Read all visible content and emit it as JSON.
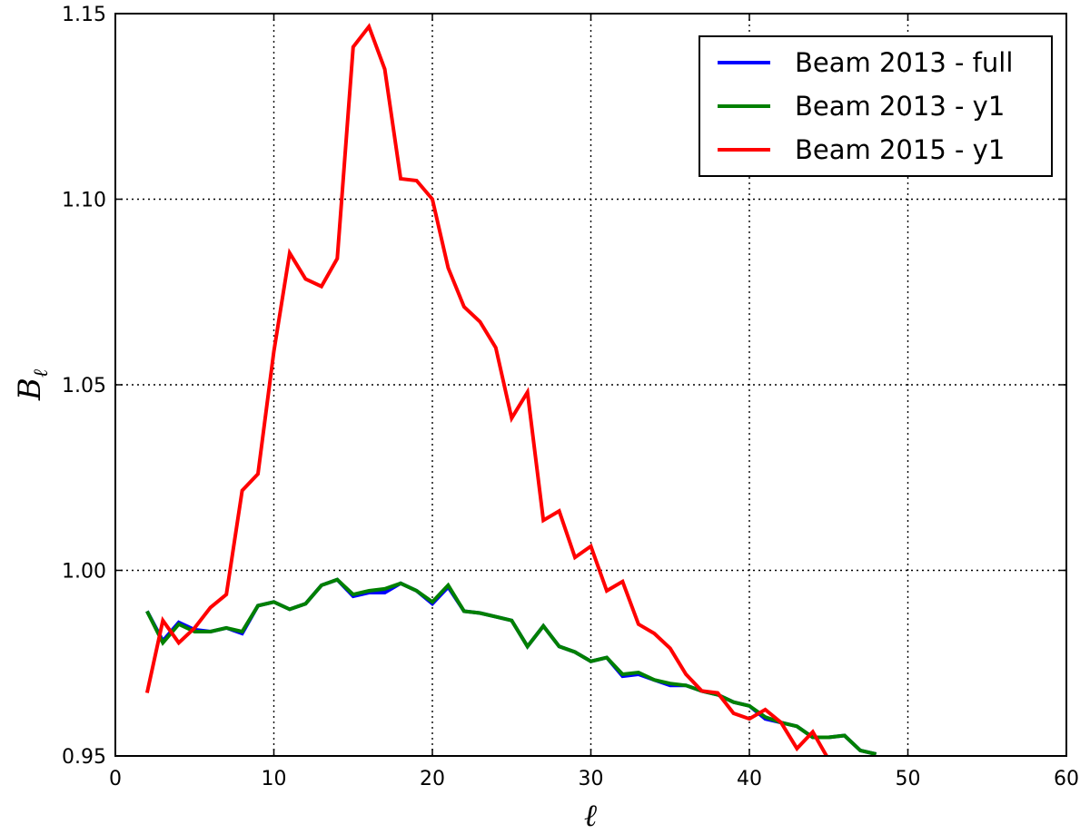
{
  "chart_data": {
    "type": "line",
    "title": "",
    "xlabel": "ℓ",
    "ylabel": "B",
    "ylabel_subscript": "ℓ",
    "xlim": [
      0,
      60
    ],
    "ylim": [
      0.95,
      1.15
    ],
    "xticks": [
      0,
      10,
      20,
      30,
      40,
      50,
      60
    ],
    "yticks": [
      0.95,
      1.0,
      1.05,
      1.1,
      1.15
    ],
    "xtick_labels": [
      "0",
      "10",
      "20",
      "30",
      "40",
      "50",
      "60"
    ],
    "ytick_labels": [
      "0.95",
      "1.00",
      "1.05",
      "1.10",
      "1.15"
    ],
    "grid": true,
    "legend_position": "top-right",
    "series": [
      {
        "name": "Beam 2013 - full",
        "color": "#0000ff",
        "x": [
          2,
          3,
          4,
          5,
          6,
          7,
          8,
          9,
          10,
          11,
          12,
          13,
          14,
          15,
          16,
          17,
          18,
          19,
          20,
          21,
          22,
          23,
          24,
          25,
          26,
          27,
          28,
          29,
          30,
          31,
          32,
          33,
          34,
          35,
          36,
          37,
          38,
          39,
          40,
          41,
          42,
          43,
          44,
          45,
          46,
          47,
          48
        ],
        "y": [
          0.989,
          0.981,
          0.986,
          0.984,
          0.9835,
          0.9845,
          0.983,
          0.9905,
          0.9915,
          0.9895,
          0.991,
          0.996,
          0.9975,
          0.993,
          0.994,
          0.994,
          0.9965,
          0.9945,
          0.991,
          0.9955,
          0.989,
          0.9885,
          0.9875,
          0.9865,
          0.9795,
          0.985,
          0.9795,
          0.978,
          0.9755,
          0.9765,
          0.9715,
          0.972,
          0.9705,
          0.969,
          0.969,
          0.9675,
          0.9665,
          0.9645,
          0.9635,
          0.96,
          0.959,
          0.958,
          0.955,
          0.955,
          0.9555,
          0.9515,
          0.9505
        ]
      },
      {
        "name": "Beam 2013 - y1",
        "color": "#008000",
        "x": [
          2,
          3,
          4,
          5,
          6,
          7,
          8,
          9,
          10,
          11,
          12,
          13,
          14,
          15,
          16,
          17,
          18,
          19,
          20,
          21,
          22,
          23,
          24,
          25,
          26,
          27,
          28,
          29,
          30,
          31,
          32,
          33,
          34,
          35,
          36,
          37,
          38,
          39,
          40,
          41,
          42,
          43,
          44,
          45,
          46,
          47,
          48
        ],
        "y": [
          0.989,
          0.9805,
          0.9855,
          0.9835,
          0.9835,
          0.9845,
          0.9835,
          0.9905,
          0.9915,
          0.9895,
          0.991,
          0.996,
          0.9975,
          0.9935,
          0.9945,
          0.995,
          0.9965,
          0.9945,
          0.9915,
          0.996,
          0.989,
          0.9885,
          0.9875,
          0.9865,
          0.9795,
          0.985,
          0.9795,
          0.978,
          0.9755,
          0.9765,
          0.972,
          0.9725,
          0.9705,
          0.9695,
          0.969,
          0.9675,
          0.9665,
          0.9645,
          0.9635,
          0.9605,
          0.959,
          0.958,
          0.955,
          0.955,
          0.9555,
          0.9515,
          0.9505
        ]
      },
      {
        "name": "Beam 2015 - y1",
        "color": "#ff0000",
        "x": [
          2,
          3,
          4,
          5,
          6,
          7,
          8,
          9,
          10,
          11,
          12,
          13,
          14,
          15,
          16,
          17,
          18,
          19,
          20,
          21,
          22,
          23,
          24,
          25,
          26,
          27,
          28,
          29,
          30,
          31,
          32,
          33,
          34,
          35,
          36,
          37,
          38,
          39,
          40,
          41,
          42,
          43,
          44,
          45
        ],
        "y": [
          0.967,
          0.9865,
          0.9805,
          0.9845,
          0.99,
          0.9935,
          1.0215,
          1.026,
          1.059,
          1.0855,
          1.0785,
          1.0765,
          1.084,
          1.141,
          1.1465,
          1.135,
          1.1055,
          1.105,
          1.1,
          1.0815,
          1.071,
          1.067,
          1.06,
          1.041,
          1.048,
          1.0135,
          1.016,
          1.0035,
          1.0065,
          0.9945,
          0.997,
          0.9855,
          0.983,
          0.979,
          0.972,
          0.9675,
          0.967,
          0.9615,
          0.96,
          0.9625,
          0.959,
          0.952,
          0.9565,
          0.949
        ]
      }
    ]
  }
}
